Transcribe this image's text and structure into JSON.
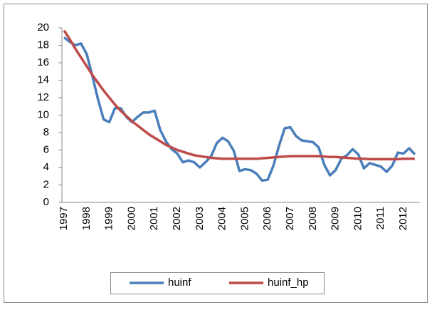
{
  "chart_data": {
    "type": "line",
    "categories": [
      "1997",
      null,
      null,
      null,
      "1998",
      null,
      null,
      null,
      "1999",
      null,
      null,
      null,
      "2000",
      null,
      null,
      null,
      "2001",
      null,
      null,
      null,
      "2002",
      null,
      null,
      null,
      "2003",
      null,
      null,
      null,
      "2004",
      null,
      null,
      null,
      "2005",
      null,
      null,
      null,
      "2006",
      null,
      null,
      null,
      "2007",
      null,
      null,
      null,
      "2008",
      null,
      null,
      null,
      "2009",
      null,
      null,
      null,
      "2010",
      null,
      null,
      null,
      "2011",
      null,
      null,
      null,
      "2012",
      null,
      null
    ],
    "series": [
      {
        "name": "huinf",
        "color": "#4a7ebb",
        "values": [
          18.9,
          18.4,
          18.0,
          18.2,
          17.0,
          14.5,
          11.8,
          9.5,
          9.2,
          10.8,
          10.8,
          9.8,
          9.2,
          9.8,
          10.3,
          10.3,
          10.5,
          8.3,
          7.0,
          6.1,
          5.6,
          4.6,
          4.8,
          4.6,
          4.0,
          4.6,
          5.3,
          6.8,
          7.4,
          7.0,
          5.9,
          3.6,
          3.8,
          3.7,
          3.3,
          2.5,
          2.6,
          4.2,
          6.5,
          8.5,
          8.6,
          7.6,
          7.1,
          7.0,
          6.9,
          6.3,
          4.3,
          3.1,
          3.7,
          5.0,
          5.4,
          6.1,
          5.5,
          3.9,
          4.5,
          4.3,
          4.1,
          3.5,
          4.2,
          5.7,
          5.6,
          6.2,
          5.5
        ]
      },
      {
        "name": "huinf_hp",
        "color": "#be4b48",
        "values": [
          19.7,
          18.7,
          17.6,
          16.6,
          15.6,
          14.6,
          13.7,
          12.8,
          12.0,
          11.2,
          10.5,
          9.9,
          9.3,
          8.8,
          8.3,
          7.8,
          7.4,
          7.0,
          6.6,
          6.3,
          6.0,
          5.8,
          5.6,
          5.4,
          5.3,
          5.2,
          5.1,
          5.05,
          5.0,
          5.0,
          5.0,
          5.0,
          5.0,
          5.0,
          5.0,
          5.05,
          5.1,
          5.15,
          5.2,
          5.25,
          5.3,
          5.3,
          5.3,
          5.3,
          5.3,
          5.3,
          5.25,
          5.2,
          5.2,
          5.15,
          5.1,
          5.05,
          5.0,
          5.0,
          4.95,
          4.95,
          4.95,
          4.95,
          4.95,
          4.95,
          5.0,
          5.0,
          5.0
        ]
      }
    ],
    "ylim": [
      0,
      20
    ],
    "yticks": [
      0,
      2,
      4,
      6,
      8,
      10,
      12,
      14,
      16,
      18,
      20
    ],
    "grid": false,
    "legend": "bottom"
  }
}
